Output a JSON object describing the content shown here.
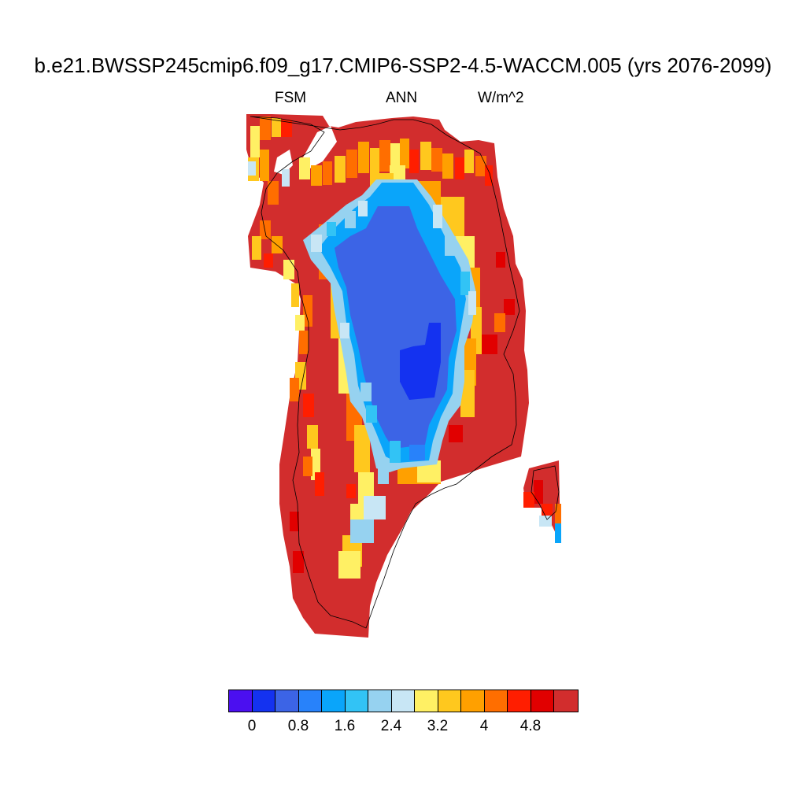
{
  "header": {
    "title": "b.e21.BWSSP245cmip6.f09_g17.CMIP6-SSP2-4.5-WACCM.005 (yrs 2076-2099)",
    "left_label": "FSM",
    "center_label": "ANN",
    "right_label": "W/m^2"
  },
  "colorbar": {
    "colors": [
      "#4b0ff0",
      "#1432f0",
      "#3c64e6",
      "#2882fa",
      "#0aa5fa",
      "#32c3f5",
      "#96d2f0",
      "#c8e6f5",
      "#fff064",
      "#ffc81e",
      "#ffa000",
      "#ff6e00",
      "#ff1e00",
      "#e10000",
      "#d22d2d"
    ],
    "tick_labels": [
      "0",
      "0.8",
      "1.6",
      "2.4",
      "3.2",
      "4",
      "4.8"
    ]
  },
  "map": {
    "region": "Greenland",
    "variable": "FSM",
    "units": "W/m^2",
    "colors": {
      "saturated_red": "#d22d2d",
      "dark_red": "#e10000",
      "red": "#ff1e00",
      "orange": "#ff6e00",
      "light_orange": "#ffa000",
      "gold": "#ffc81e",
      "yellow": "#fff064",
      "pale_blue": "#c8e6f5",
      "light_blue": "#96d2f0",
      "sky_blue": "#32c3f5",
      "cyan_blue": "#0aa5fa",
      "medium_blue": "#2882fa",
      "royal_blue": "#3c64e6",
      "deep_blue": "#1432f0",
      "coastline": "#000000"
    }
  }
}
